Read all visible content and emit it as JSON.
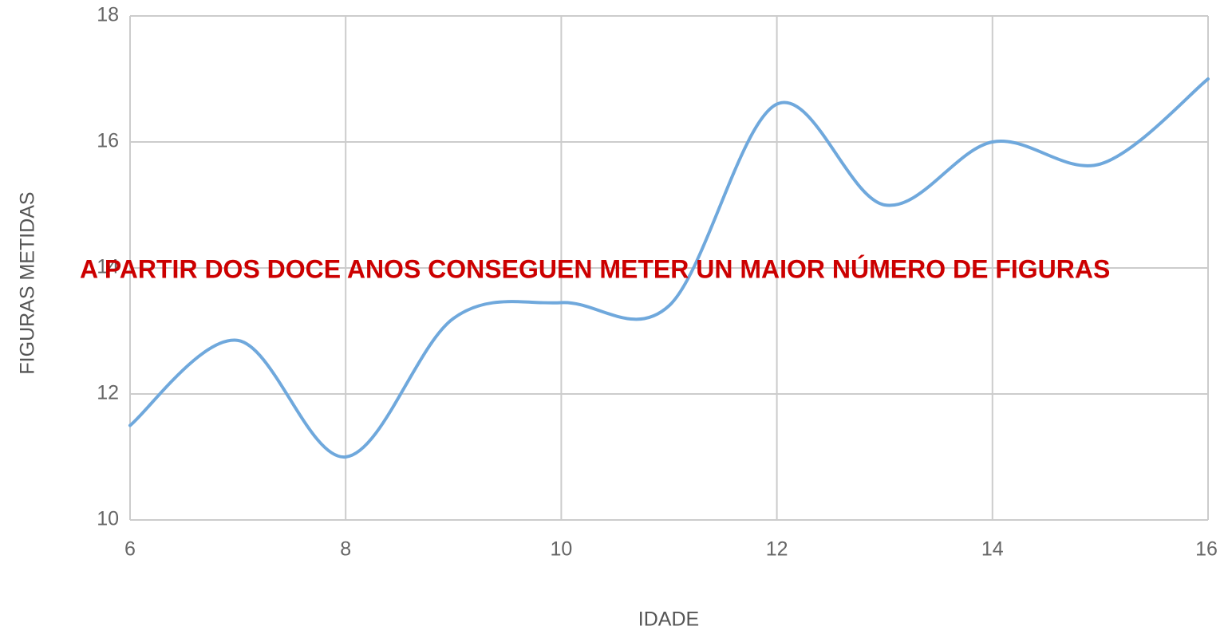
{
  "chart_data": {
    "type": "line",
    "x": [
      6,
      7,
      8,
      9,
      10,
      11,
      12,
      13,
      14,
      15,
      16
    ],
    "values": [
      11.5,
      12.85,
      11,
      13.2,
      13.45,
      13.4,
      16.6,
      15,
      16,
      15.65,
      17
    ],
    "color": "#6fa8dc",
    "xlabel": "IDADE",
    "ylabel": "FIGURAS METIDAS",
    "annotation": "A PARTIR DOS DOCE ANOS CONSEGUEN METER UN MAIOR NÚMERO DE FIGURAS",
    "xlim": [
      6,
      16
    ],
    "xticks": [
      6,
      8,
      10,
      12,
      14,
      16
    ],
    "ylim": [
      10,
      18
    ],
    "yticks": [
      10,
      12,
      14,
      16,
      18
    ],
    "grid": true,
    "smooth": true
  }
}
